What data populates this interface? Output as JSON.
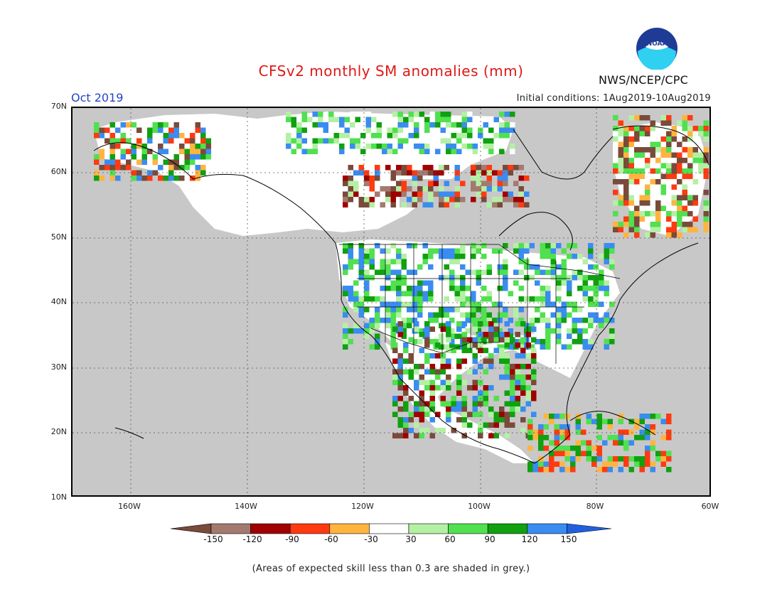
{
  "title": "CFSv2 monthly SM anomalies (mm)",
  "valid_month": "Oct 2019",
  "initial_conditions": "Initial conditions: 1Aug2019-10Aug2019",
  "agency": "NWS/NCEP/CPC",
  "logo_text": "NOAA",
  "footnote": "(Areas of expected skill less than 0.3 are shaded in grey.)",
  "lat_labels": [
    "70N",
    "60N",
    "50N",
    "40N",
    "30N",
    "20N",
    "10N"
  ],
  "lon_labels": [
    "160W",
    "140W",
    "120W",
    "100W",
    "80W",
    "60W"
  ],
  "colorbar": {
    "labels": [
      "-150",
      "-120",
      "-90",
      "-60",
      "-30",
      "30",
      "60",
      "90",
      "120",
      "150"
    ],
    "colors": [
      "#7a4a3a",
      "#a47a70",
      "#a00000",
      "#ff3a10",
      "#ffb440",
      "#ffffff",
      "#b4f0a4",
      "#50e050",
      "#10a010",
      "#3a8cf0",
      "#2060e0"
    ]
  },
  "colors": {
    "land_unskilled": "#c8c8c8",
    "ocean": "#c8c8c8",
    "title": "#e01818",
    "valid_month": "#2244cc"
  }
}
